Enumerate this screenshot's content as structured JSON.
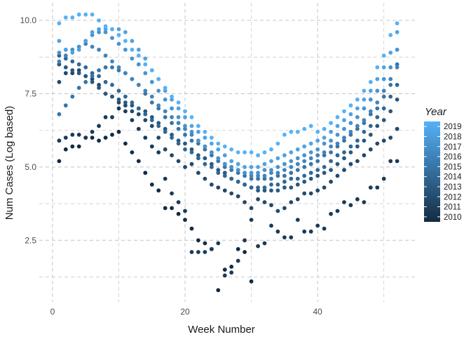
{
  "chart_data": {
    "type": "scatter",
    "title": "",
    "xlabel": "Week Number",
    "ylabel": "Num Cases (Log based)",
    "xlim": [
      -2,
      55
    ],
    "ylim": [
      0.4,
      10.6
    ],
    "x_ticks": [
      0,
      20,
      40
    ],
    "x_tick_labels": [
      "0",
      "20",
      "40"
    ],
    "y_ticks": [
      2.5,
      5.0,
      7.5,
      10.0
    ],
    "y_tick_labels": [
      "2.5",
      "5.0",
      "7.5",
      "10.0"
    ],
    "grid": true,
    "grid_style": "dashed",
    "legend": {
      "title": "Year",
      "position": "right",
      "min": 2010,
      "max": 2019,
      "labels": [
        "2019",
        "2018",
        "2017",
        "2016",
        "2015",
        "2014",
        "2013",
        "2012",
        "2011",
        "2010"
      ],
      "color_low": "#132b43",
      "color_high": "#56b1f7"
    },
    "series": [
      {
        "year": 2010,
        "x": [
          1,
          2,
          3,
          4,
          5,
          6,
          7,
          8,
          9,
          10,
          11,
          12,
          13,
          14,
          15,
          16,
          17,
          18,
          19,
          20,
          21,
          22,
          23,
          24,
          25,
          26,
          27,
          28,
          29,
          30
        ],
        "y": [
          5.2,
          5.6,
          5.7,
          5.7,
          6.0,
          6.0,
          5.9,
          6.0,
          6.1,
          6.2,
          5.8,
          5.5,
          5.2,
          4.8,
          4.4,
          4.2,
          3.6,
          3.6,
          3.4,
          3.2,
          2.9,
          2.5,
          2.4,
          2.2,
          0.8,
          1.5,
          1.6,
          2.2,
          2.1,
          1.1
        ]
      },
      {
        "year": 2011,
        "x": [
          1,
          2,
          3,
          4,
          5,
          6,
          7,
          8,
          9,
          10,
          11,
          12,
          13,
          14,
          15,
          16,
          17,
          18,
          19,
          20,
          21,
          22,
          23,
          24,
          25,
          26,
          27,
          28,
          29,
          30,
          31,
          32,
          33,
          34,
          35,
          36,
          37,
          38,
          39,
          40,
          41,
          42,
          43,
          44,
          45,
          46,
          47,
          48,
          49,
          50,
          51,
          52
        ],
        "y": [
          5.9,
          6.0,
          6.1,
          6.1,
          6.0,
          6.2,
          6.4,
          6.7,
          6.7,
          7.0,
          6.9,
          6.6,
          6.3,
          6.0,
          5.7,
          5.5,
          4.6,
          4.1,
          3.8,
          3.5,
          2.1,
          2.1,
          2.1,
          2.2,
          2.4,
          1.3,
          1.4,
          1.8,
          2.5,
          3.2,
          2.3,
          2.4,
          3.0,
          2.8,
          2.6,
          2.6,
          3.2,
          2.8,
          2.8,
          3.0,
          2.9,
          3.4,
          3.5,
          3.8,
          3.7,
          3.9,
          3.8,
          4.3,
          4.3,
          4.6,
          5.2,
          5.2
        ]
      },
      {
        "year": 2012,
        "x": [
          1,
          2,
          3,
          4,
          5,
          6,
          7,
          8,
          9,
          10,
          11,
          12,
          13,
          14,
          15,
          16,
          17,
          18,
          19,
          20,
          21,
          22,
          23,
          24,
          25,
          26,
          27,
          28,
          29,
          30,
          31,
          32,
          33,
          34,
          35,
          36,
          37,
          38,
          39,
          40,
          41,
          42,
          43,
          44,
          45,
          46,
          47,
          48,
          49,
          50,
          51,
          52
        ],
        "y": [
          7.9,
          8.2,
          8.2,
          8.3,
          8.1,
          8.0,
          7.8,
          7.5,
          7.4,
          7.2,
          7.1,
          6.9,
          6.8,
          6.6,
          6.4,
          6.0,
          5.6,
          5.4,
          5.2,
          5.0,
          5.1,
          4.8,
          4.6,
          4.4,
          4.3,
          4.2,
          4.1,
          4.0,
          3.8,
          3.6,
          3.9,
          3.8,
          3.7,
          3.5,
          3.6,
          3.8,
          3.9,
          4.1,
          4.1,
          4.2,
          4.3,
          4.5,
          4.7,
          4.9,
          5.1,
          5.2,
          5.4,
          5.6,
          5.8,
          5.9,
          6.0,
          6.3
        ]
      },
      {
        "year": 2013,
        "x": [
          1,
          2,
          3,
          4,
          5,
          6,
          7,
          8,
          9,
          10,
          11,
          12,
          13,
          14,
          15,
          16,
          17,
          18,
          19,
          20,
          21,
          22,
          23,
          24,
          25,
          26,
          27,
          28,
          29,
          30,
          31,
          32,
          33,
          34,
          35,
          36,
          37,
          38,
          39,
          40,
          41,
          42,
          43,
          44,
          45,
          46,
          47,
          48,
          49,
          50,
          51,
          52
        ],
        "y": [
          8.5,
          8.4,
          8.3,
          8.2,
          8.1,
          7.9,
          7.7,
          7.5,
          7.4,
          7.3,
          7.2,
          7.1,
          7.0,
          6.9,
          6.7,
          6.5,
          6.3,
          6.1,
          5.9,
          5.8,
          5.6,
          5.4,
          5.3,
          5.1,
          4.9,
          4.8,
          4.6,
          4.5,
          4.4,
          4.3,
          4.2,
          4.2,
          4.2,
          4.2,
          4.3,
          4.3,
          4.4,
          4.5,
          4.6,
          4.7,
          4.8,
          4.9,
          5.1,
          5.3,
          5.5,
          5.7,
          5.9,
          6.1,
          6.4,
          6.6,
          6.9,
          7.3
        ]
      },
      {
        "year": 2014,
        "x": [
          1,
          2,
          3,
          4,
          5,
          6,
          7,
          8,
          9,
          10,
          11,
          12,
          13,
          14,
          15,
          16,
          17,
          18,
          19,
          20,
          21,
          22,
          23,
          24,
          25,
          26,
          27,
          28,
          29,
          30,
          31,
          32,
          33,
          34,
          35,
          36,
          37,
          38,
          39,
          40,
          41,
          42,
          43,
          44,
          45,
          46,
          47,
          48,
          49,
          50,
          51,
          52
        ],
        "y": [
          8.8,
          8.7,
          8.6,
          8.5,
          8.4,
          8.2,
          8.1,
          7.9,
          7.8,
          7.6,
          7.4,
          7.2,
          7.0,
          6.8,
          6.6,
          6.4,
          6.2,
          6.0,
          5.8,
          5.6,
          5.5,
          5.3,
          5.1,
          5.0,
          4.8,
          4.7,
          4.6,
          4.5,
          4.4,
          4.3,
          4.3,
          4.3,
          4.4,
          4.4,
          4.5,
          4.6,
          4.6,
          4.7,
          4.8,
          4.9,
          5.0,
          5.2,
          5.4,
          5.5,
          5.7,
          5.9,
          6.2,
          6.4,
          6.7,
          7.0,
          7.4,
          7.8
        ]
      },
      {
        "year": 2015,
        "x": [
          1,
          2,
          3,
          4,
          5,
          6,
          7,
          8,
          9,
          10,
          11,
          12,
          13,
          14,
          15,
          16,
          17,
          18,
          19,
          20,
          21,
          22,
          23,
          24,
          25,
          26,
          27,
          28,
          29,
          30,
          31,
          32,
          33,
          34,
          35,
          36,
          37,
          38,
          39,
          40,
          41,
          42,
          43,
          44,
          45,
          46,
          47,
          48,
          49,
          50,
          51,
          52
        ],
        "y": [
          6.8,
          7.1,
          7.4,
          7.7,
          7.9,
          8.1,
          8.3,
          8.4,
          8.4,
          8.3,
          8.2,
          8.0,
          7.8,
          7.5,
          7.2,
          7.0,
          6.7,
          6.5,
          6.3,
          6.1,
          5.9,
          5.8,
          5.6,
          5.4,
          5.2,
          5.0,
          4.9,
          4.8,
          4.7,
          4.6,
          4.6,
          4.6,
          4.6,
          4.7,
          4.7,
          4.8,
          4.9,
          5.0,
          5.1,
          5.2,
          5.4,
          5.5,
          5.7,
          5.9,
          6.1,
          6.3,
          6.5,
          6.8,
          7.0,
          7.4,
          7.8,
          8.5
        ]
      },
      {
        "year": 2016,
        "x": [
          1,
          2,
          3,
          4,
          5,
          6,
          7,
          8,
          9,
          10,
          11,
          12,
          13,
          14,
          15,
          16,
          17,
          18,
          19,
          20,
          21,
          22,
          23,
          24,
          25,
          26,
          27,
          28,
          29,
          30,
          31,
          32,
          33,
          34,
          35,
          36,
          37,
          38,
          39,
          40,
          41,
          42,
          43,
          44,
          45,
          46,
          47,
          48,
          49,
          50,
          51,
          52
        ],
        "y": [
          8.6,
          8.8,
          9.0,
          9.1,
          9.2,
          9.1,
          9.0,
          8.8,
          8.6,
          8.4,
          8.2,
          8.0,
          7.8,
          7.6,
          7.4,
          7.1,
          6.9,
          6.7,
          6.5,
          6.3,
          6.1,
          5.9,
          5.7,
          5.5,
          5.3,
          5.1,
          5.0,
          4.9,
          4.8,
          4.7,
          4.7,
          4.7,
          4.8,
          4.8,
          4.9,
          5.0,
          5.1,
          5.2,
          5.3,
          5.4,
          5.5,
          5.7,
          5.8,
          6.0,
          6.2,
          6.4,
          6.6,
          6.9,
          7.2,
          7.6,
          8.0,
          8.4
        ]
      },
      {
        "year": 2017,
        "x": [
          1,
          2,
          3,
          4,
          5,
          6,
          7,
          8,
          9,
          10,
          11,
          12,
          13,
          14,
          15,
          16,
          17,
          18,
          19,
          20,
          21,
          22,
          23,
          24,
          25,
          26,
          27,
          28,
          29,
          30,
          31,
          32,
          33,
          34,
          35,
          36,
          37,
          38,
          39,
          40,
          41,
          42,
          43,
          44,
          45,
          46,
          47,
          48,
          49,
          50,
          51,
          52
        ],
        "y": [
          8.9,
          9.0,
          9.0,
          9.1,
          9.3,
          9.5,
          9.6,
          9.6,
          9.4,
          9.2,
          9.0,
          8.7,
          8.5,
          8.2,
          7.9,
          7.6,
          7.3,
          7.0,
          6.7,
          6.4,
          6.2,
          5.9,
          5.7,
          5.5,
          5.3,
          5.1,
          5.0,
          4.9,
          4.8,
          4.8,
          4.8,
          4.9,
          4.9,
          5.0,
          5.1,
          5.2,
          5.3,
          5.4,
          5.5,
          5.6,
          5.8,
          5.9,
          6.1,
          6.3,
          6.5,
          6.7,
          7.0,
          7.3,
          7.6,
          8.0,
          8.4,
          9.0
        ]
      },
      {
        "year": 2018,
        "x": [
          1,
          2,
          3,
          4,
          5,
          6,
          7,
          8,
          9,
          10,
          11,
          12,
          13,
          14,
          15,
          16,
          17,
          18,
          19,
          20,
          21,
          22,
          23,
          24,
          25,
          26,
          27,
          28,
          29,
          30,
          31,
          32,
          33,
          34,
          35,
          36,
          37,
          38,
          39,
          40,
          41,
          42,
          43,
          44,
          45,
          46,
          47,
          48,
          49,
          50,
          51,
          52
        ],
        "y": [
          9.3,
          9.0,
          8.9,
          9.0,
          9.3,
          9.6,
          9.7,
          9.7,
          9.7,
          9.7,
          9.6,
          9.3,
          9.0,
          8.7,
          8.3,
          8.0,
          7.6,
          7.3,
          7.0,
          6.7,
          6.4,
          6.2,
          6.0,
          5.8,
          5.6,
          5.4,
          5.2,
          5.1,
          5.0,
          5.0,
          5.0,
          5.1,
          5.2,
          5.3,
          5.4,
          5.5,
          5.6,
          5.7,
          5.8,
          5.9,
          6.0,
          6.2,
          6.4,
          6.6,
          6.8,
          7.0,
          7.3,
          7.6,
          8.0,
          8.4,
          8.9,
          9.6
        ]
      },
      {
        "year": 2019,
        "x": [
          1,
          2,
          3,
          4,
          5,
          6,
          7,
          8,
          9,
          10,
          11,
          12,
          13,
          14,
          15,
          16,
          17,
          18,
          19,
          20,
          21,
          22,
          23,
          24,
          25,
          26,
          27,
          28,
          29,
          30,
          31,
          32,
          33,
          34,
          35,
          36,
          37,
          38,
          39,
          40,
          41,
          42,
          43,
          44,
          45,
          46,
          47,
          48,
          49,
          50,
          51,
          52
        ],
        "y": [
          9.9,
          10.1,
          10.1,
          10.2,
          10.2,
          10.2,
          10.0,
          9.8,
          9.7,
          9.5,
          9.3,
          9.0,
          8.8,
          8.5,
          8.3,
          8.0,
          7.7,
          7.4,
          7.2,
          6.9,
          6.7,
          6.4,
          6.2,
          6.0,
          5.8,
          5.7,
          5.6,
          5.5,
          5.5,
          5.5,
          5.4,
          5.5,
          5.6,
          5.8,
          6.1,
          6.2,
          6.2,
          6.3,
          6.4,
          6.2,
          6.3,
          6.5,
          6.7,
          6.9,
          7.1,
          7.3,
          7.6,
          7.9,
          8.4,
          8.8,
          9.5,
          9.9
        ]
      }
    ]
  }
}
